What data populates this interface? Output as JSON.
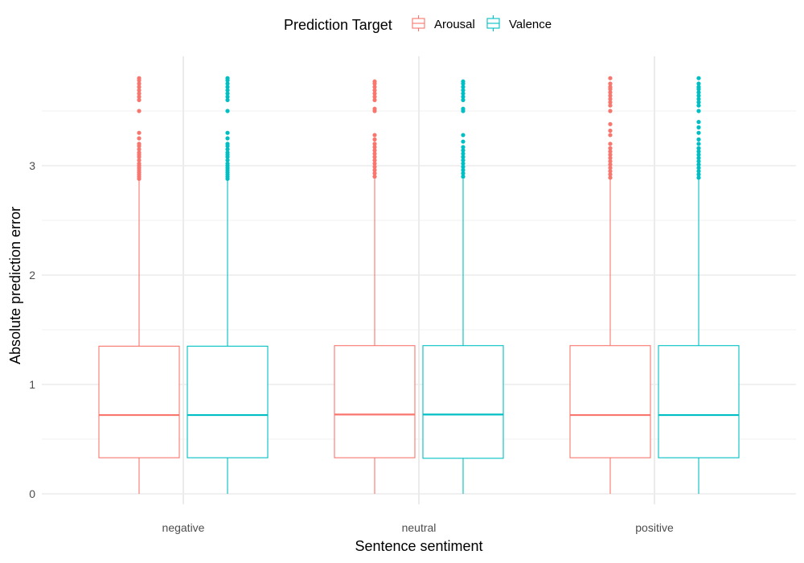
{
  "legend": {
    "title": "Prediction Target",
    "position": "top"
  },
  "chart_data": {
    "type": "boxplot",
    "xlabel": "Sentence sentiment",
    "ylabel": "Absolute prediction error",
    "categories": [
      "negative",
      "neutral",
      "positive"
    ],
    "yticks": [
      0,
      1,
      2,
      3
    ],
    "ylim": [
      -0.05,
      3.9
    ],
    "grid": true,
    "series": [
      {
        "name": "Arousal",
        "color": "#F8766D",
        "boxes": [
          {
            "category": "negative",
            "whisker_low": 0,
            "q1": 0.33,
            "median": 0.72,
            "q3": 1.35,
            "whisker_high": 2.87,
            "outliers": [
              2.88,
              2.9,
              2.92,
              2.94,
              2.96,
              2.98,
              3.0,
              3.02,
              3.05,
              3.08,
              3.1,
              3.12,
              3.15,
              3.18,
              3.2,
              3.25,
              3.3,
              3.5,
              3.6,
              3.63,
              3.66,
              3.69,
              3.72,
              3.75,
              3.78,
              3.8
            ]
          },
          {
            "category": "neutral",
            "whisker_low": 0,
            "q1": 0.33,
            "median": 0.725,
            "q3": 1.355,
            "whisker_high": 2.88,
            "outliers": [
              2.9,
              2.93,
              2.96,
              2.99,
              3.02,
              3.05,
              3.08,
              3.11,
              3.14,
              3.17,
              3.2,
              3.24,
              3.28,
              3.5,
              3.52,
              3.6,
              3.63,
              3.66,
              3.69,
              3.72,
              3.75,
              3.77
            ]
          },
          {
            "category": "positive",
            "whisker_low": 0,
            "q1": 0.33,
            "median": 0.72,
            "q3": 1.355,
            "whisker_high": 2.88,
            "outliers": [
              2.89,
              2.92,
              2.95,
              2.98,
              3.01,
              3.04,
              3.07,
              3.1,
              3.13,
              3.16,
              3.2,
              3.28,
              3.32,
              3.38,
              3.5,
              3.55,
              3.58,
              3.61,
              3.64,
              3.67,
              3.7,
              3.72,
              3.75,
              3.8
            ]
          }
        ]
      },
      {
        "name": "Valence",
        "color": "#00BFC4",
        "boxes": [
          {
            "category": "negative",
            "whisker_low": 0,
            "q1": 0.33,
            "median": 0.72,
            "q3": 1.35,
            "whisker_high": 2.87,
            "outliers": [
              2.88,
              2.9,
              2.92,
              2.94,
              2.96,
              2.98,
              3.0,
              3.02,
              3.05,
              3.08,
              3.1,
              3.12,
              3.15,
              3.18,
              3.2,
              3.25,
              3.3,
              3.5,
              3.6,
              3.63,
              3.66,
              3.69,
              3.72,
              3.75,
              3.78,
              3.8
            ]
          },
          {
            "category": "neutral",
            "whisker_low": 0,
            "q1": 0.325,
            "median": 0.725,
            "q3": 1.355,
            "whisker_high": 2.88,
            "outliers": [
              2.9,
              2.93,
              2.96,
              2.99,
              3.02,
              3.05,
              3.08,
              3.11,
              3.14,
              3.17,
              3.22,
              3.28,
              3.5,
              3.52,
              3.6,
              3.63,
              3.66,
              3.69,
              3.72,
              3.75,
              3.77
            ]
          },
          {
            "category": "positive",
            "whisker_low": 0,
            "q1": 0.33,
            "median": 0.72,
            "q3": 1.355,
            "whisker_high": 2.88,
            "outliers": [
              2.89,
              2.92,
              2.95,
              2.98,
              3.01,
              3.04,
              3.07,
              3.1,
              3.13,
              3.16,
              3.2,
              3.24,
              3.3,
              3.35,
              3.4,
              3.5,
              3.55,
              3.58,
              3.61,
              3.64,
              3.67,
              3.7,
              3.72,
              3.75,
              3.8
            ]
          }
        ]
      }
    ]
  }
}
